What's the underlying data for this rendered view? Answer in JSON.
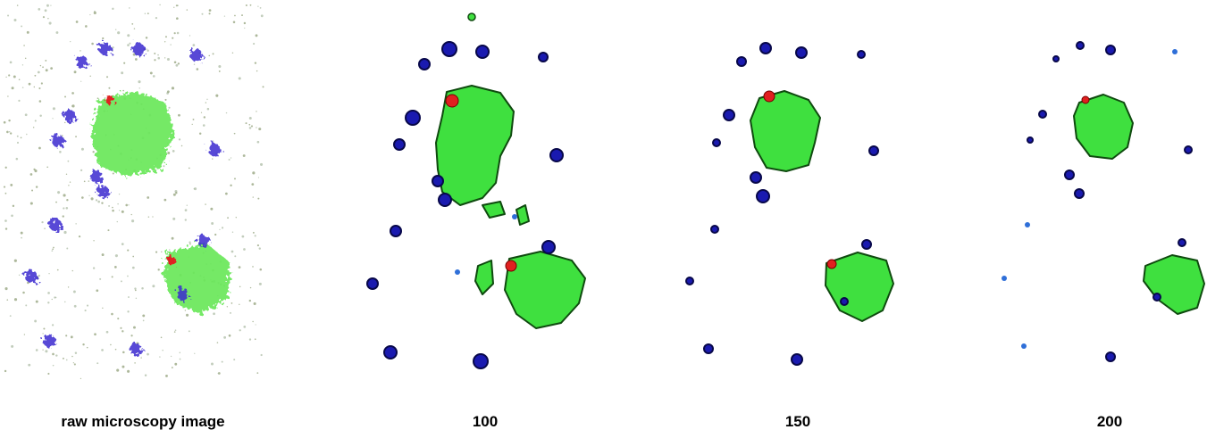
{
  "panels": [
    {
      "label": "raw microscopy image"
    },
    {
      "label": "100"
    },
    {
      "label": "150"
    },
    {
      "label": "200"
    }
  ]
}
